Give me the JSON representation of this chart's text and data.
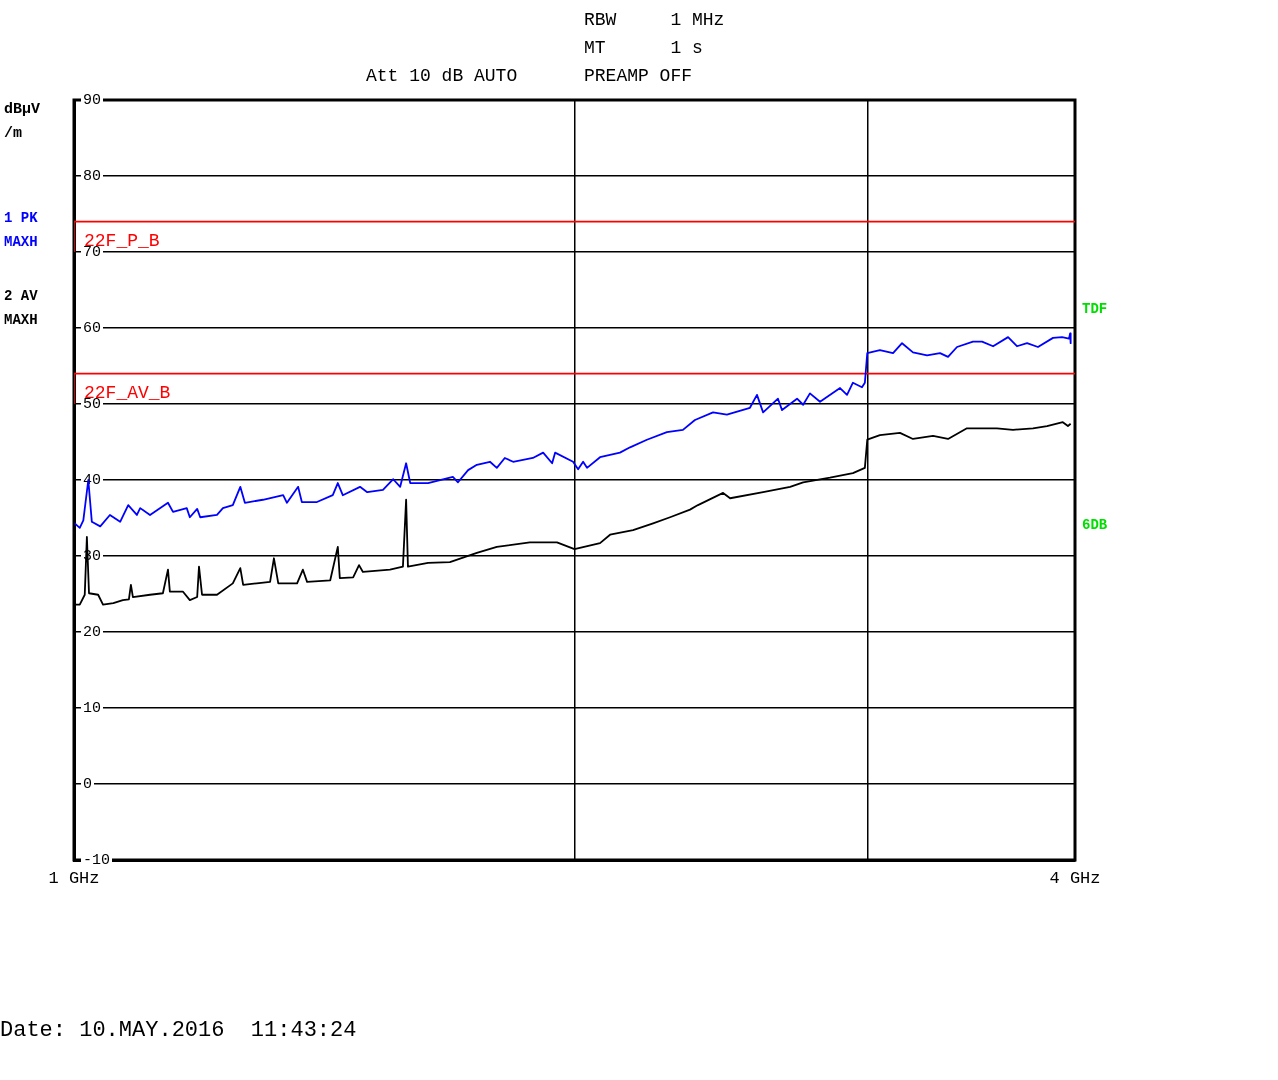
{
  "chart_data": {
    "type": "line",
    "ylabel": "dBµV/m",
    "log": "x",
    "grid": true,
    "xlim": [
      1,
      4
    ],
    "xticks": [
      {
        "value": 1,
        "label": "1 GHz"
      },
      {
        "value": 2,
        "label": null
      },
      {
        "value": 3,
        "label": null
      },
      {
        "value": 4,
        "label": "4 GHz"
      }
    ],
    "ylim": [
      -10,
      90
    ],
    "yticks": [
      -10,
      0,
      10,
      20,
      30,
      40,
      50,
      60,
      70,
      80,
      90
    ],
    "annotations": [
      "RBW     1 MHz",
      "MT      1 s",
      "Att 10 dB AUTO",
      "PREAMP OFF",
      "TDF",
      "6DB",
      "Date: 10.MAY.2016  11:43:24"
    ],
    "series": [
      {
        "name": "1 PK MAXH",
        "color": "#0000ff",
        "x": [
          1.001,
          1.008,
          1.013,
          1.02,
          1.025,
          1.037,
          1.051,
          1.066,
          1.078,
          1.091,
          1.096,
          1.111,
          1.139,
          1.147,
          1.169,
          1.174,
          1.186,
          1.191,
          1.219,
          1.229,
          1.246,
          1.259,
          1.267,
          1.299,
          1.336,
          1.343,
          1.364,
          1.371,
          1.4,
          1.431,
          1.441,
          1.451,
          1.486,
          1.501,
          1.534,
          1.556,
          1.571,
          1.584,
          1.593,
          1.633,
          1.69,
          1.702,
          1.726,
          1.747,
          1.779,
          1.796,
          1.816,
          1.837,
          1.888,
          1.915,
          1.939,
          1.947,
          1.996,
          2.01,
          2.024,
          2.035,
          2.072,
          2.13,
          2.16,
          2.211,
          2.273,
          2.324,
          2.363,
          2.423,
          2.47,
          2.55,
          2.575,
          2.597,
          2.651,
          2.666,
          2.722,
          2.745,
          2.771,
          2.81,
          2.889,
          2.917,
          2.941,
          2.978,
          2.99,
          3.0,
          3.053,
          3.109,
          3.148,
          3.196,
          3.259,
          3.318,
          3.355,
          3.397,
          3.473,
          3.517,
          3.571,
          3.646,
          3.691,
          3.743,
          3.8,
          3.88,
          3.929,
          3.967,
          3.973,
          3.976
        ],
        "values": [
          34.3,
          33.7,
          34.7,
          40.0,
          34.5,
          33.9,
          35.4,
          34.5,
          36.7,
          35.4,
          36.3,
          35.4,
          37.0,
          35.8,
          36.3,
          35.1,
          36.2,
          35.1,
          35.4,
          36.3,
          36.7,
          39.1,
          37.0,
          37.4,
          38.0,
          37.0,
          39.1,
          37.1,
          37.1,
          38.0,
          39.6,
          38.0,
          39.1,
          38.4,
          38.7,
          40.1,
          39.1,
          42.2,
          39.6,
          39.6,
          40.4,
          39.7,
          41.3,
          42.0,
          42.4,
          41.6,
          42.9,
          42.4,
          42.9,
          43.6,
          42.2,
          43.6,
          42.4,
          41.4,
          42.4,
          41.6,
          43.0,
          43.6,
          44.3,
          45.3,
          46.3,
          46.6,
          47.9,
          48.9,
          48.6,
          49.5,
          51.2,
          48.9,
          50.7,
          49.2,
          50.7,
          49.9,
          51.4,
          50.3,
          52.1,
          51.2,
          52.8,
          52.2,
          52.8,
          56.7,
          57.1,
          56.7,
          58.0,
          56.8,
          56.4,
          56.7,
          56.2,
          57.5,
          58.2,
          58.2,
          57.6,
          58.8,
          57.6,
          58.0,
          57.5,
          58.7,
          58.8,
          58.6,
          59.3,
          58.0
        ]
      },
      {
        "name": "2 AV MAXH",
        "color": "#000000",
        "x": [
          1.001,
          1.008,
          1.015,
          1.018,
          1.021,
          1.034,
          1.041,
          1.056,
          1.07,
          1.079,
          1.082,
          1.085,
          1.111,
          1.131,
          1.139,
          1.142,
          1.163,
          1.174,
          1.186,
          1.189,
          1.194,
          1.219,
          1.246,
          1.259,
          1.264,
          1.288,
          1.312,
          1.319,
          1.327,
          1.362,
          1.373,
          1.381,
          1.426,
          1.441,
          1.445,
          1.472,
          1.484,
          1.492,
          1.549,
          1.577,
          1.584,
          1.588,
          1.633,
          1.683,
          1.747,
          1.796,
          1.88,
          1.952,
          2.0,
          2.072,
          2.101,
          2.169,
          2.23,
          2.283,
          2.347,
          2.373,
          2.457,
          2.481,
          2.597,
          2.696,
          2.745,
          2.849,
          2.941,
          2.99,
          3.0,
          3.053,
          3.139,
          3.196,
          3.286,
          3.355,
          3.444,
          3.59,
          3.671,
          3.774,
          3.848,
          3.933,
          3.961,
          3.976
        ],
        "values": [
          23.6,
          23.6,
          24.9,
          32.5,
          25.1,
          24.9,
          23.6,
          23.8,
          24.2,
          24.3,
          26.2,
          24.6,
          24.9,
          25.1,
          28.2,
          25.3,
          25.3,
          24.2,
          24.6,
          28.6,
          24.9,
          24.9,
          26.4,
          28.4,
          26.2,
          26.4,
          26.6,
          29.7,
          26.4,
          26.4,
          28.2,
          26.6,
          26.8,
          31.2,
          27.1,
          27.2,
          28.8,
          27.9,
          28.2,
          28.6,
          37.4,
          28.6,
          29.1,
          29.2,
          30.4,
          31.2,
          31.8,
          31.8,
          30.9,
          31.7,
          32.8,
          33.4,
          34.3,
          35.1,
          36.1,
          36.7,
          38.3,
          37.6,
          38.4,
          39.1,
          39.7,
          40.3,
          40.9,
          41.6,
          45.3,
          45.9,
          46.2,
          45.4,
          45.8,
          45.4,
          46.8,
          46.8,
          46.6,
          46.8,
          47.1,
          47.6,
          47.1,
          47.4
        ]
      },
      {
        "name": "22F_P_B",
        "type": "step",
        "color": "#ff0000",
        "x": [
          1,
          3,
          4
        ],
        "values": [
          70,
          74,
          74
        ]
      },
      {
        "name": "22F_AV_B",
        "type": "step",
        "color": "#ff0000",
        "x": [
          1,
          3,
          4
        ],
        "values": [
          50,
          54,
          54
        ]
      }
    ]
  }
}
